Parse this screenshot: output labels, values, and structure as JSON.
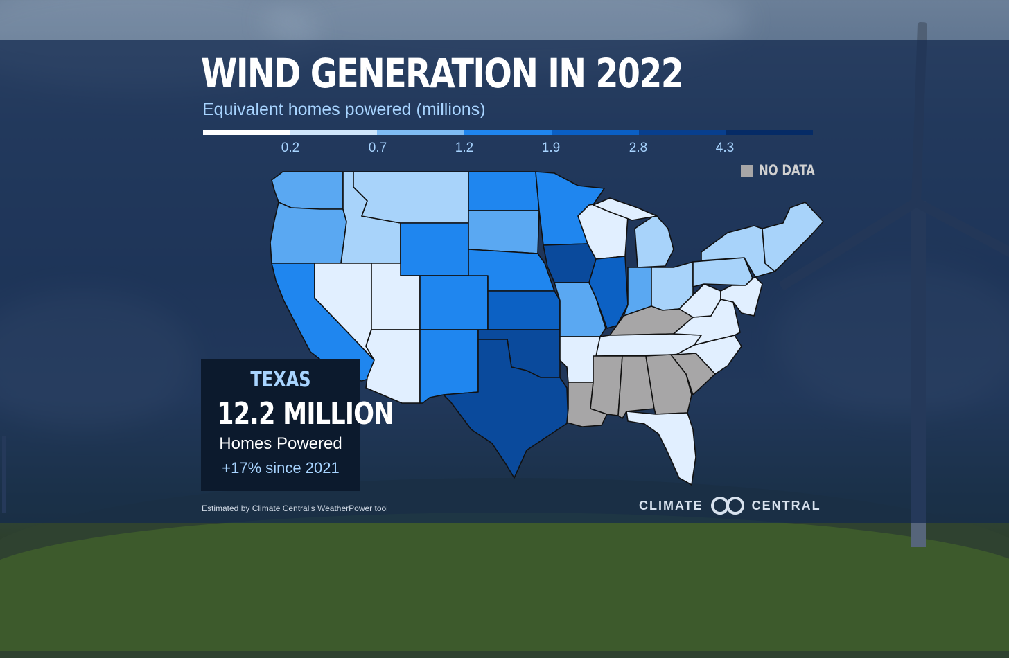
{
  "title": "WIND GENERATION IN 2022",
  "subtitle": "Equivalent homes powered (millions)",
  "legend": {
    "colors": [
      "#ffffff",
      "#cfe6fb",
      "#7fbdf5",
      "#1f85ee",
      "#0a5fc4",
      "#083f8e",
      "#052b66"
    ],
    "ticks": [
      "0.2",
      "0.7",
      "1.2",
      "1.9",
      "2.8",
      "4.3"
    ],
    "no_data_label": "NO DATA",
    "no_data_color": "#a7a6a7"
  },
  "callout": {
    "state": "TEXAS",
    "value": "12.2 MILLION",
    "caption": "Homes Powered",
    "change": "+17% since 2021"
  },
  "source": "Estimated by Climate Central's WeatherPower tool",
  "logo": {
    "word1": "CLIMATE",
    "word2": "CENTRAL"
  },
  "state_bins": {
    "WA": 2,
    "OR": 2,
    "CA": 3,
    "ID": 1,
    "NV": 0,
    "MT": 1,
    "WY": 3,
    "UT": 0,
    "AZ": 0,
    "CO": 3,
    "NM": 3,
    "ND": 3,
    "SD": 2,
    "NE": 3,
    "KS": 4,
    "OK": 5,
    "TX": 5,
    "MN": 3,
    "IA": 5,
    "MO": 2,
    "AR": 0,
    "LA": "nodata",
    "WI": 0,
    "IL": 4,
    "MI": 1,
    "IN": 2,
    "OH": 1,
    "KY": "nodata",
    "TN": 0,
    "MS": "nodata",
    "AL": "nodata",
    "GA": "nodata",
    "FL": 0,
    "SC": "nodata",
    "NC": 0,
    "VA": 0,
    "WV": 0,
    "PA": 1,
    "NY": 1,
    "ME": 1,
    "NE_states": 0
  }
}
